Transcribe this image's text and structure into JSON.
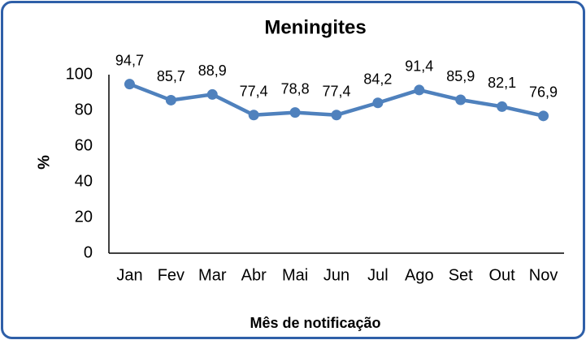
{
  "chart_data": {
    "type": "line",
    "title": "Meningites",
    "x_label": "Mês de notificação",
    "y_label": "%",
    "categories": [
      "Jan",
      "Fev",
      "Mar",
      "Abr",
      "Mai",
      "Jun",
      "Jul",
      "Ago",
      "Set",
      "Out",
      "Nov"
    ],
    "values": [
      94.7,
      85.7,
      88.9,
      77.4,
      78.8,
      77.4,
      84.2,
      91.4,
      85.9,
      82.1,
      76.9
    ],
    "value_labels": [
      "94,7",
      "85,7",
      "88,9",
      "77,4",
      "78,8",
      "77,4",
      "84,2",
      "91,4",
      "85,9",
      "82,1",
      "76,9"
    ],
    "color": "#4f81bd",
    "ylim": [
      0,
      100
    ],
    "yticks": [
      0,
      20,
      40,
      60,
      80,
      100
    ],
    "grid": false
  }
}
